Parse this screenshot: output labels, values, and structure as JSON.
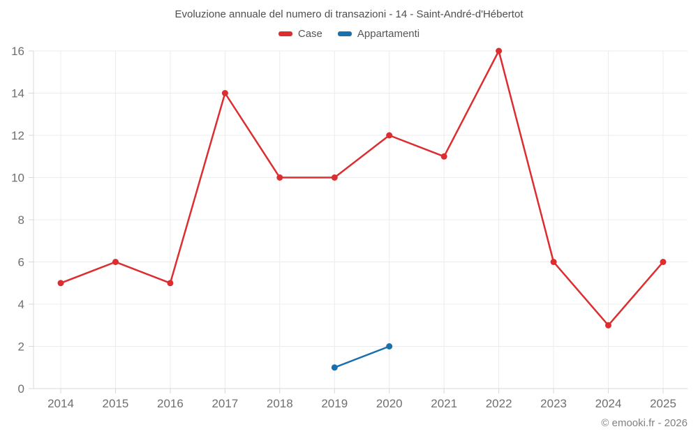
{
  "title": "Evoluzione annuale del numero di transazioni - 14 - Saint-André-d'Hébertot",
  "legend": [
    {
      "label": "Case",
      "color": "#dc2d30"
    },
    {
      "label": "Appartamenti",
      "color": "#1a6fac"
    }
  ],
  "footer": {
    "copyright": "© emooki.fr - 2026"
  },
  "colors": {
    "grid": "#ececec",
    "axis": "#d8d8d8",
    "tick": "#d8d8d8",
    "axis_label": "#6f6f6f"
  },
  "chart_data": {
    "type": "line",
    "categories": [
      "2014",
      "2015",
      "2016",
      "2017",
      "2018",
      "2019",
      "2020",
      "2021",
      "2022",
      "2023",
      "2024",
      "2025"
    ],
    "series": [
      {
        "name": "Case",
        "color": "#dc2d30",
        "values": [
          5,
          6,
          5,
          14,
          10,
          10,
          12,
          11,
          16,
          6,
          3,
          6
        ]
      },
      {
        "name": "Appartamenti",
        "color": "#1a6fac",
        "values": [
          null,
          null,
          null,
          null,
          null,
          1,
          2,
          null,
          null,
          null,
          null,
          null
        ]
      }
    ],
    "title": "Evoluzione annuale del numero di transazioni - 14 - Saint-André-d'Hébertot",
    "xlabel": "",
    "ylabel": "",
    "ylim": [
      0,
      16
    ],
    "ytick_step": 2,
    "grid": true,
    "legend_position": "top"
  }
}
